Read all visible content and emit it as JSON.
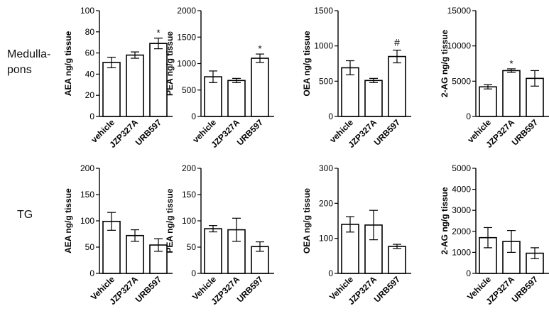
{
  "row_labels": [
    "Medulla-\npons",
    "TG"
  ],
  "chart_data": [
    {
      "type": "bar",
      "row": 0,
      "ylabel": "AEA ng/g tissue",
      "categories": [
        "vehicle",
        "JZP327A",
        "URB597"
      ],
      "values": [
        51,
        58,
        69
      ],
      "errors": [
        5,
        3,
        5
      ],
      "annotations": [
        "",
        "",
        "*"
      ],
      "ylim": [
        0,
        100
      ],
      "yticks": [
        0,
        20,
        40,
        60,
        80,
        100
      ]
    },
    {
      "type": "bar",
      "row": 0,
      "ylabel": "PEA ng/g tissue",
      "categories": [
        "vehicle",
        "JZP327A",
        "URB597"
      ],
      "values": [
        750,
        680,
        1100
      ],
      "errors": [
        110,
        40,
        80
      ],
      "annotations": [
        "",
        "",
        "*"
      ],
      "ylim": [
        0,
        2000
      ],
      "yticks": [
        0,
        500,
        1000,
        1500,
        2000
      ]
    },
    {
      "type": "bar",
      "row": 0,
      "ylabel": "OEA ng/g tissue",
      "categories": [
        "vehicle",
        "JZP327A",
        "URB597"
      ],
      "values": [
        690,
        510,
        850
      ],
      "errors": [
        100,
        30,
        90
      ],
      "annotations": [
        "",
        "",
        "#"
      ],
      "ylim": [
        0,
        1500
      ],
      "yticks": [
        0,
        500,
        1000,
        1500
      ]
    },
    {
      "type": "bar",
      "row": 0,
      "ylabel": "2-AG ng/g tissue",
      "categories": [
        "vehicle",
        "JZP327A",
        "URB597"
      ],
      "values": [
        4200,
        6500,
        5400
      ],
      "errors": [
        300,
        250,
        1100
      ],
      "annotations": [
        "",
        "*",
        ""
      ],
      "ylim": [
        0,
        15000
      ],
      "yticks": [
        0,
        5000,
        10000,
        15000
      ]
    },
    {
      "type": "bar",
      "row": 1,
      "ylabel": "AEA ng/g tissue",
      "categories": [
        "Vehicle",
        "JZP327A",
        "URB597"
      ],
      "values": [
        99,
        72,
        54
      ],
      "errors": [
        17,
        11,
        12
      ],
      "annotations": [
        "",
        "",
        ""
      ],
      "ylim": [
        0,
        200
      ],
      "yticks": [
        0,
        50,
        100,
        150,
        200
      ]
    },
    {
      "type": "bar",
      "row": 1,
      "ylabel": "PEA ng/g tissue",
      "categories": [
        "Vehicle",
        "JZP327A",
        "URB597"
      ],
      "values": [
        85,
        83,
        51
      ],
      "errors": [
        6,
        22,
        9
      ],
      "annotations": [
        "",
        "",
        ""
      ],
      "ylim": [
        0,
        200
      ],
      "yticks": [
        0,
        50,
        100,
        150,
        200
      ]
    },
    {
      "type": "bar",
      "row": 1,
      "ylabel": "OEA ng/g tissue",
      "categories": [
        "Vehicle",
        "JZP327A",
        "URB597"
      ],
      "values": [
        140,
        138,
        77
      ],
      "errors": [
        22,
        42,
        6
      ],
      "annotations": [
        "",
        "",
        ""
      ],
      "ylim": [
        0,
        300
      ],
      "yticks": [
        0,
        100,
        200,
        300
      ]
    },
    {
      "type": "bar",
      "row": 1,
      "ylabel": "2-AG ng/g tissue",
      "categories": [
        "Vehicle",
        "JZP327A",
        "URB597"
      ],
      "values": [
        1700,
        1520,
        960
      ],
      "errors": [
        480,
        520,
        260
      ],
      "annotations": [
        "",
        "",
        ""
      ],
      "ylim": [
        0,
        5000
      ],
      "yticks": [
        0,
        1000,
        2000,
        3000,
        4000,
        5000
      ]
    }
  ]
}
